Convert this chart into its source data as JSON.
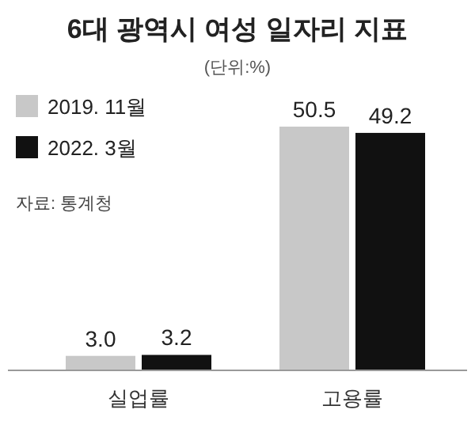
{
  "chart_data": {
    "type": "bar",
    "title": "6대 광역시 여성 일자리 지표",
    "subtitle": "(단위:%)",
    "categories": [
      "실업률",
      "고용률"
    ],
    "series": [
      {
        "name": "2019. 11월",
        "color": "#c8c8c8",
        "values": [
          3.0,
          50.5
        ],
        "value_labels": [
          "3.0",
          "50.5"
        ]
      },
      {
        "name": "2022. 3월",
        "color": "#111111",
        "values": [
          3.2,
          49.2
        ],
        "value_labels": [
          "3.2",
          "49.2"
        ]
      }
    ],
    "legend": "top left",
    "annotations": [
      "자료: 통계청"
    ]
  }
}
